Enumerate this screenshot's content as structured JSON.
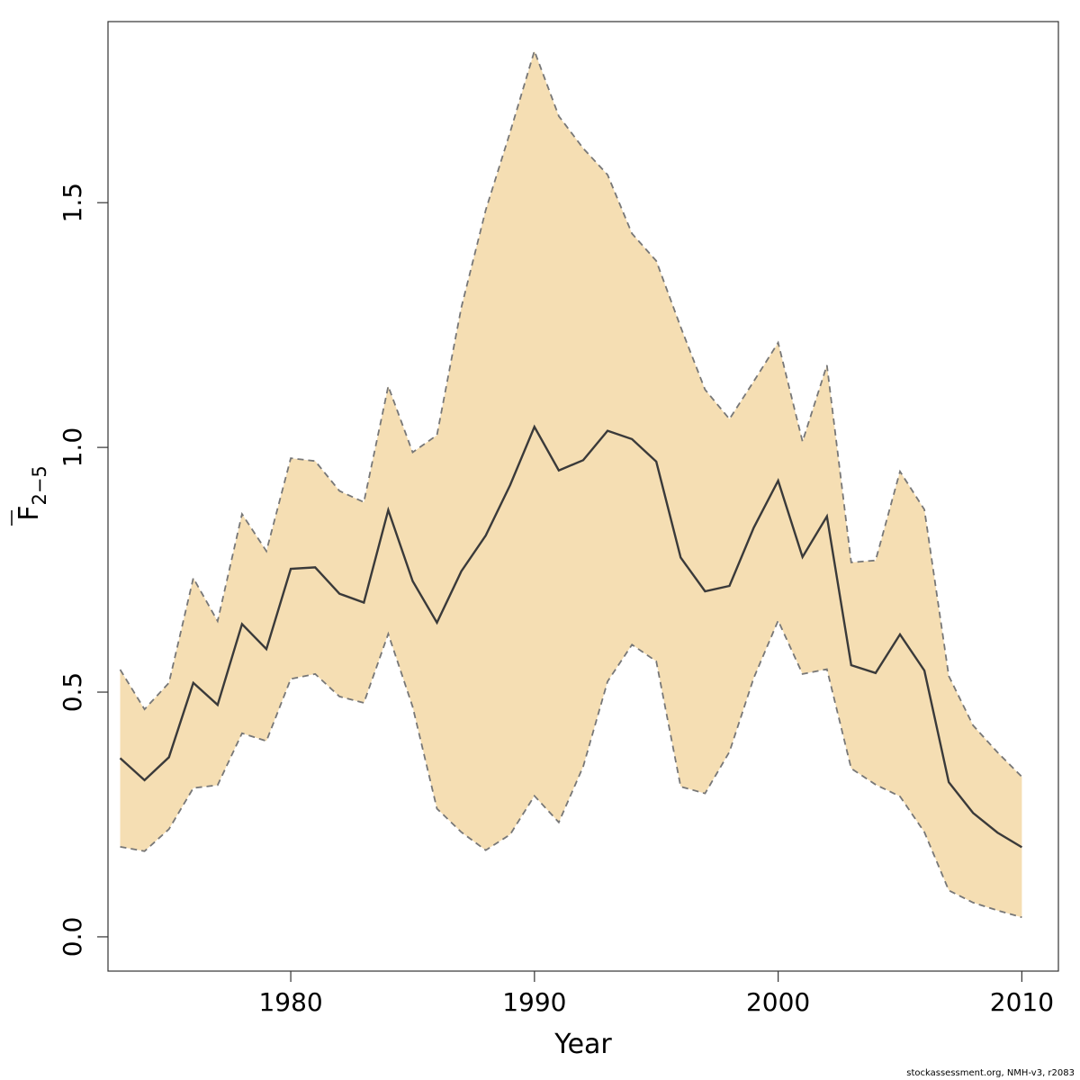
{
  "chart_data": {
    "type": "line",
    "xlabel": "Year",
    "ylabel_main": "F",
    "ylabel_sub": "2−5",
    "xlim": [
      1972.5,
      2011.5
    ],
    "ylim": [
      -0.07,
      1.87
    ],
    "x_ticks": [
      1980,
      1990,
      2000,
      2010
    ],
    "y_ticks": [
      0.0,
      0.5,
      1.0,
      1.5
    ],
    "y_tick_labels": [
      "0.0",
      "0.5",
      "1.0",
      "1.5"
    ],
    "band_color": "#f5deb3",
    "line_color": "#3a3a3a",
    "band_edge_color": "#777777",
    "years": [
      1973,
      1974,
      1975,
      1976,
      1977,
      1978,
      1979,
      1980,
      1981,
      1982,
      1983,
      1984,
      1985,
      1986,
      1987,
      1988,
      1989,
      1990,
      1991,
      1992,
      1993,
      1994,
      1995,
      1996,
      1997,
      1998,
      1999,
      2000,
      2001,
      2002,
      2003,
      2004,
      2005,
      2006,
      2007,
      2008,
      2009,
      2010
    ],
    "series": [
      {
        "name": "estimate",
        "values": [
          0.365,
          0.32,
          0.367,
          0.519,
          0.474,
          0.639,
          0.588,
          0.752,
          0.755,
          0.701,
          0.683,
          0.872,
          0.727,
          0.642,
          0.747,
          0.82,
          0.923,
          1.042,
          0.953,
          0.974,
          1.034,
          1.017,
          0.971,
          0.775,
          0.706,
          0.717,
          0.836,
          0.932,
          0.776,
          0.859,
          0.555,
          0.539,
          0.618,
          0.544,
          0.316,
          0.253,
          0.213,
          0.183
        ]
      },
      {
        "name": "upper",
        "values": [
          0.546,
          0.465,
          0.519,
          0.733,
          0.645,
          0.864,
          0.788,
          0.978,
          0.972,
          0.911,
          0.888,
          1.125,
          0.99,
          1.025,
          1.286,
          1.485,
          1.644,
          1.81,
          1.677,
          1.611,
          1.557,
          1.437,
          1.381,
          1.246,
          1.118,
          1.058,
          1.135,
          1.214,
          1.012,
          1.168,
          0.765,
          0.769,
          0.951,
          0.873,
          0.533,
          0.432,
          0.377,
          0.327
        ]
      },
      {
        "name": "lower",
        "values": [
          0.184,
          0.175,
          0.22,
          0.304,
          0.31,
          0.416,
          0.4,
          0.527,
          0.537,
          0.491,
          0.478,
          0.619,
          0.47,
          0.262,
          0.214,
          0.177,
          0.209,
          0.288,
          0.234,
          0.348,
          0.522,
          0.597,
          0.563,
          0.307,
          0.293,
          0.378,
          0.529,
          0.646,
          0.537,
          0.547,
          0.344,
          0.311,
          0.287,
          0.214,
          0.095,
          0.07,
          0.054,
          0.04
        ]
      }
    ]
  },
  "footer": "stockassessment.org, NMH-v3, r2083"
}
